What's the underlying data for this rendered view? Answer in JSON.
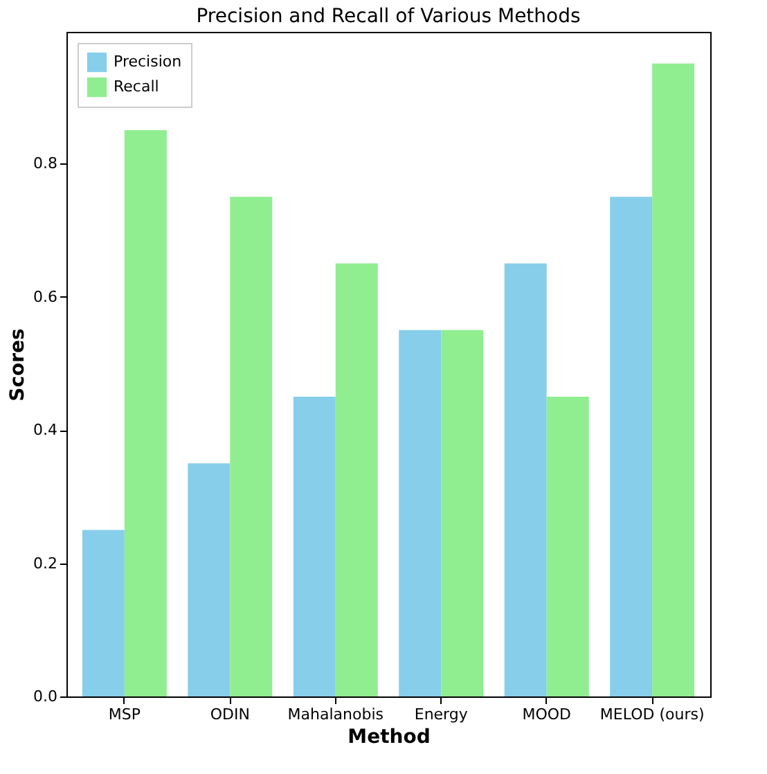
{
  "chart_data": {
    "type": "bar",
    "title": "Precision and Recall of Various Methods",
    "xlabel": "Method",
    "ylabel": "Scores",
    "categories": [
      "MSP",
      "ODIN",
      "Mahalanobis",
      "Energy",
      "MOOD",
      "MELOD (ours)"
    ],
    "series": [
      {
        "name": "Precision",
        "color": "#87ceeb",
        "values": [
          0.25,
          0.35,
          0.45,
          0.55,
          0.65,
          0.75
        ]
      },
      {
        "name": "Recall",
        "color": "#90ee90",
        "values": [
          0.85,
          0.75,
          0.65,
          0.55,
          0.45,
          0.95
        ]
      }
    ],
    "ylim": [
      0,
      0.9975
    ],
    "yticks": [
      {
        "value": 0,
        "label": "0.0"
      },
      0.2,
      0.4,
      0.6,
      0.8
    ],
    "legend": "top left",
    "grid": false
  }
}
